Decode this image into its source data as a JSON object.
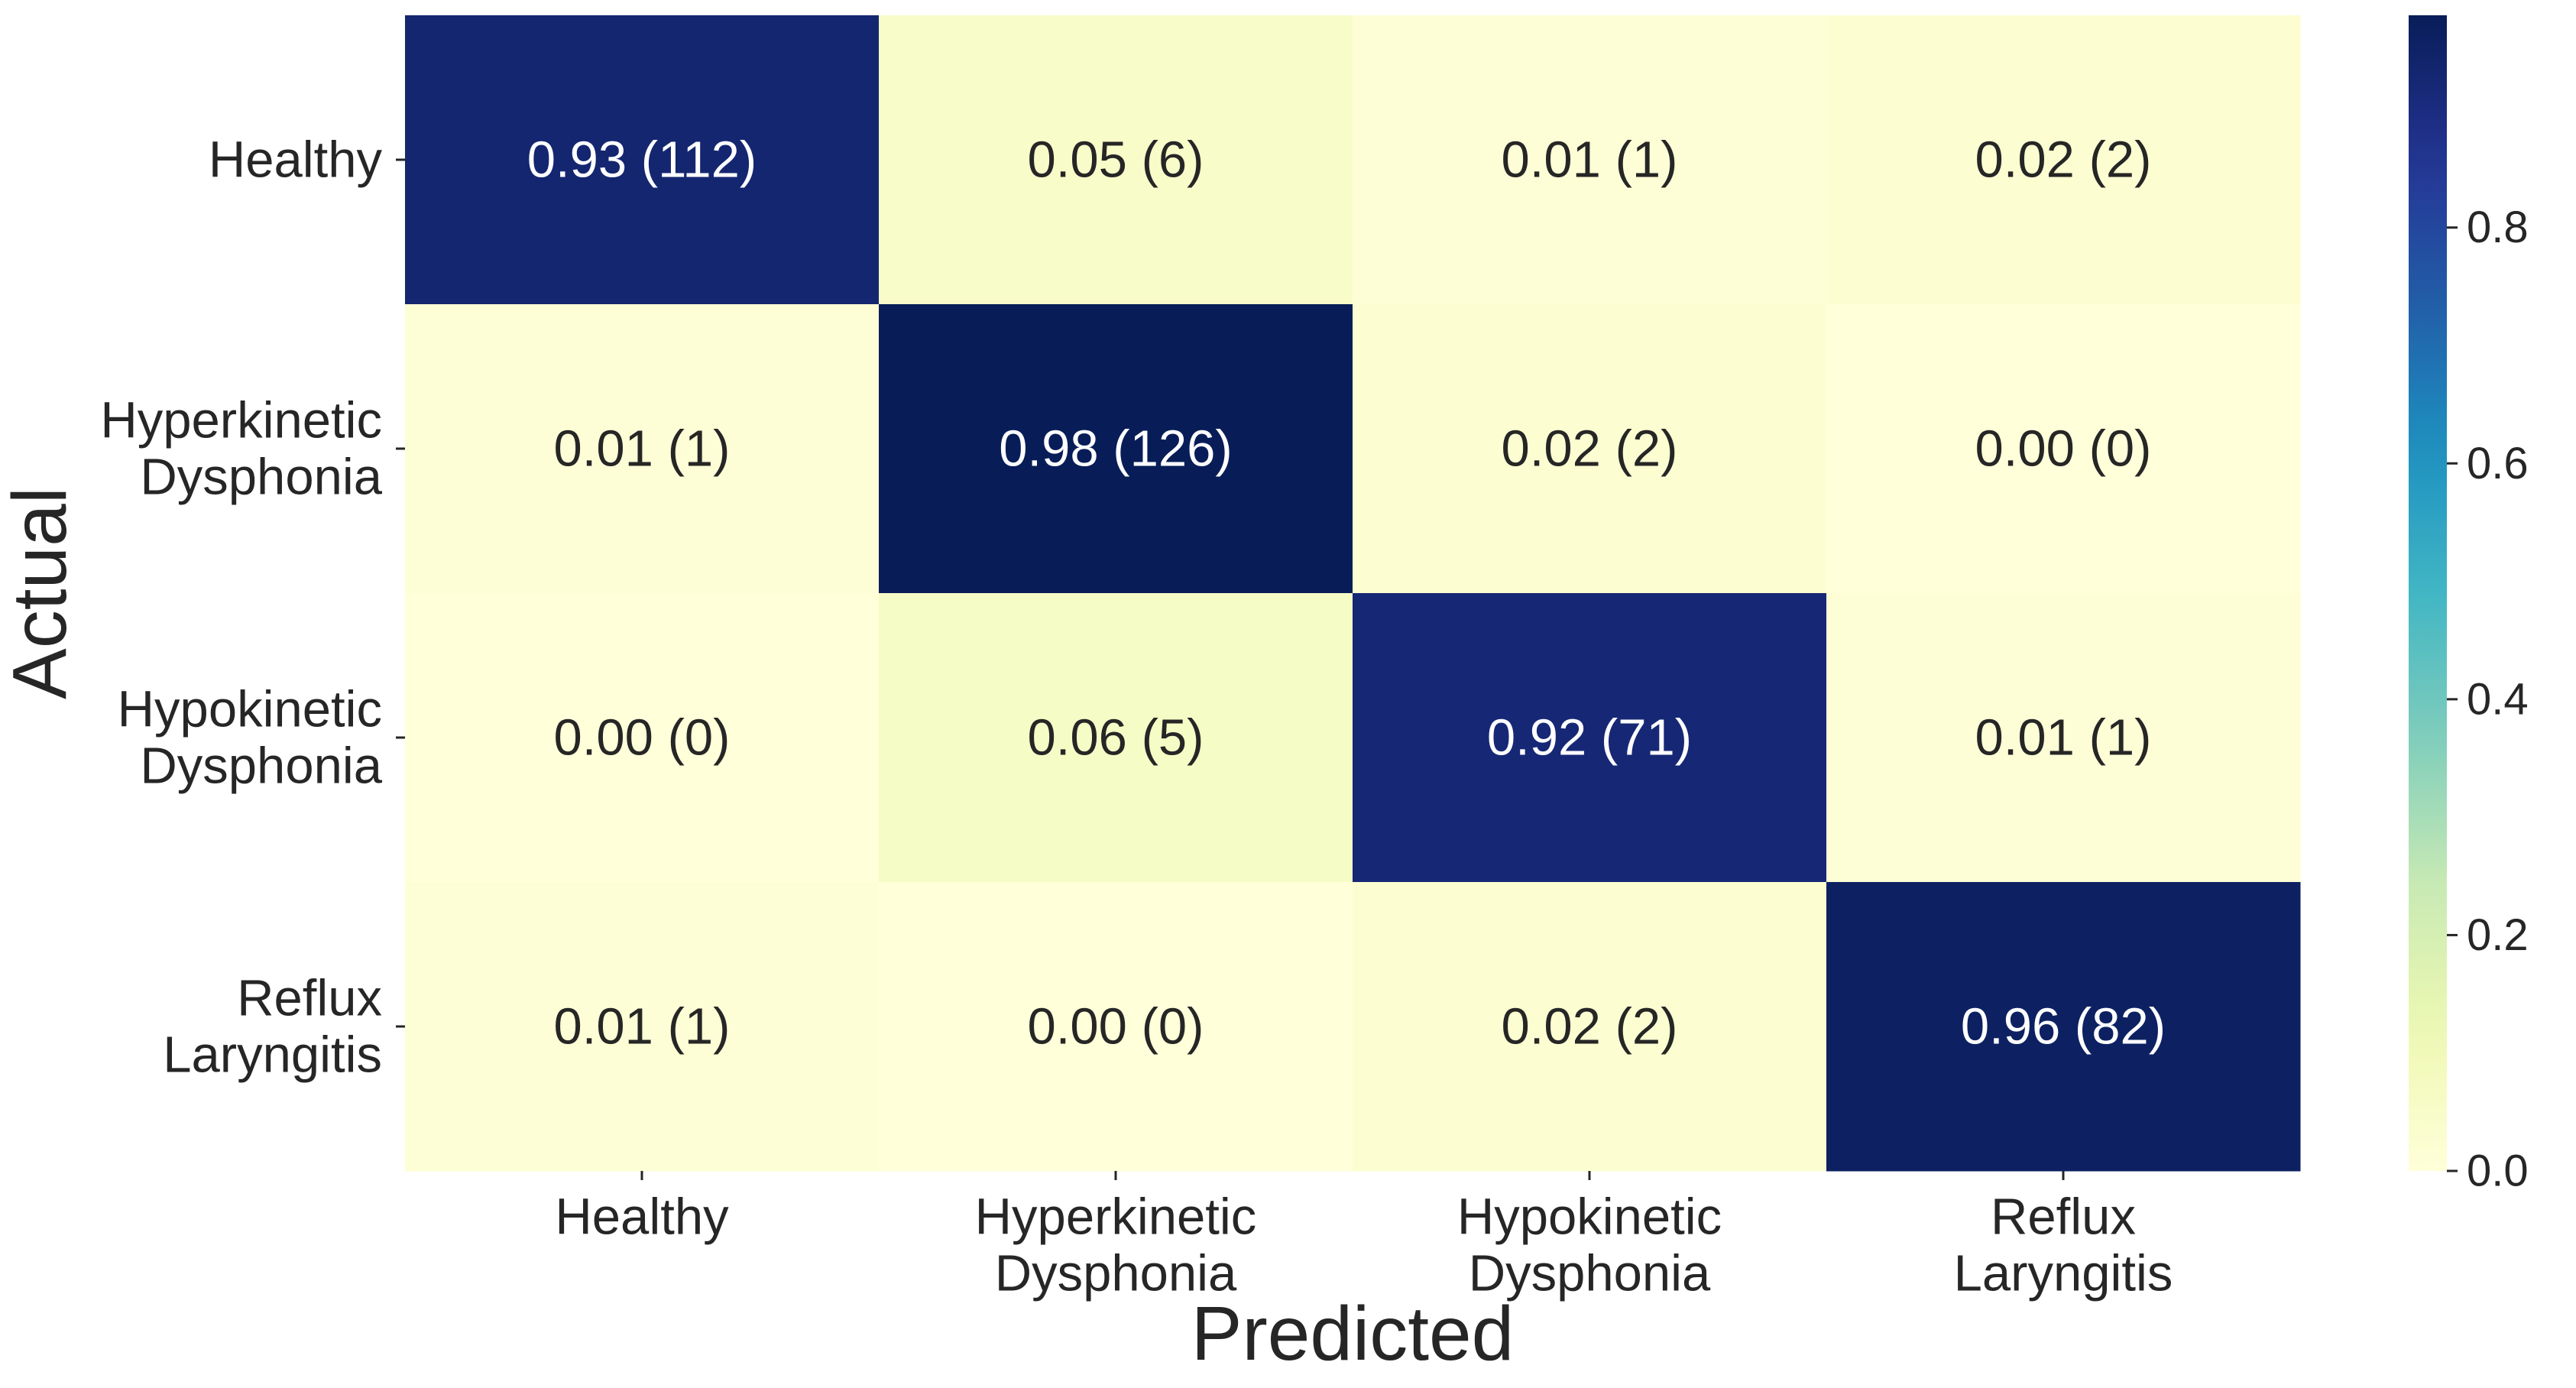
{
  "chart_data": {
    "type": "heatmap",
    "title": "",
    "xlabel": "Predicted",
    "ylabel": "Actual",
    "row_labels": [
      [
        "Healthy"
      ],
      [
        "Hyperkinetic",
        "Dysphonia"
      ],
      [
        "Hypokinetic",
        "Dysphonia"
      ],
      [
        "Reflux",
        "Laryngitis"
      ]
    ],
    "col_labels": [
      [
        "Healthy"
      ],
      [
        "Hyperkinetic",
        "Dysphonia"
      ],
      [
        "Hypokinetic",
        "Dysphonia"
      ],
      [
        "Reflux",
        "Laryngitis"
      ]
    ],
    "values": [
      [
        0.93,
        0.05,
        0.01,
        0.02
      ],
      [
        0.01,
        0.98,
        0.02,
        0.0
      ],
      [
        0.0,
        0.06,
        0.92,
        0.01
      ],
      [
        0.01,
        0.0,
        0.02,
        0.96
      ]
    ],
    "counts": [
      [
        112,
        6,
        1,
        2
      ],
      [
        1,
        126,
        2,
        0
      ],
      [
        0,
        5,
        71,
        1
      ],
      [
        1,
        0,
        2,
        82
      ]
    ],
    "cell_labels": [
      [
        "0.93 (112)",
        "0.05 (6)",
        "0.01 (1)",
        "0.02 (2)"
      ],
      [
        "0.01 (1)",
        "0.98 (126)",
        "0.02 (2)",
        "0.00 (0)"
      ],
      [
        "0.00 (0)",
        "0.06 (5)",
        "0.92 (71)",
        "0.01 (1)"
      ],
      [
        "0.01 (1)",
        "0.00 (0)",
        "0.02 (2)",
        "0.96 (82)"
      ]
    ],
    "colormap": "YlGnBu",
    "colorbar": {
      "range": [
        0.0,
        0.98
      ],
      "ticks": [
        0.0,
        0.2,
        0.4,
        0.6,
        0.8
      ],
      "tick_labels": [
        "0.0",
        "0.2",
        "0.4",
        "0.6",
        "0.8"
      ]
    },
    "colors": {
      "text_dark": "#262626",
      "text_light": "#ffffff",
      "tick_color": "#262626"
    }
  }
}
